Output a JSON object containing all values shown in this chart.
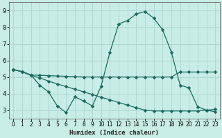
{
  "xlabel": "Humidex (Indice chaleur)",
  "background_color": "#c8ece6",
  "grid_color": "#b0d8d0",
  "line_color": "#1a6b5e",
  "xlim": [
    -0.5,
    23.5
  ],
  "ylim": [
    2.5,
    9.5
  ],
  "xticks": [
    0,
    1,
    2,
    3,
    4,
    5,
    6,
    7,
    8,
    9,
    10,
    11,
    12,
    13,
    14,
    15,
    16,
    17,
    18,
    19,
    20,
    21,
    22,
    23
  ],
  "yticks": [
    3,
    4,
    5,
    6,
    7,
    8,
    9
  ],
  "line1_x": [
    0,
    1,
    2,
    3,
    4,
    5,
    6,
    7,
    8,
    9,
    10,
    11,
    12,
    13,
    14,
    15,
    16,
    17,
    18,
    19,
    20,
    21,
    22,
    23
  ],
  "line1_y": [
    5.45,
    5.32,
    5.12,
    5.1,
    5.08,
    5.06,
    5.04,
    5.02,
    5.0,
    5.0,
    5.0,
    5.0,
    5.0,
    5.0,
    5.0,
    5.0,
    5.0,
    5.0,
    5.0,
    5.3,
    5.3,
    5.3,
    5.3,
    5.3
  ],
  "line2_x": [
    0,
    1,
    2,
    3,
    4,
    5,
    6,
    7,
    8,
    9,
    10,
    11,
    12,
    13,
    14,
    15,
    16,
    17,
    18,
    19,
    20,
    21,
    22,
    23
  ],
  "line2_y": [
    5.45,
    5.32,
    5.12,
    4.5,
    4.1,
    3.25,
    2.85,
    3.8,
    3.55,
    3.25,
    4.45,
    6.5,
    8.2,
    8.4,
    8.8,
    8.95,
    8.55,
    7.85,
    6.5,
    4.5,
    4.35,
    3.2,
    3.0,
    2.9
  ],
  "line3_x": [
    0,
    1,
    2,
    3,
    4,
    5,
    6,
    7,
    8,
    9,
    10,
    11,
    12,
    13,
    14,
    15,
    16,
    17,
    18,
    19,
    20,
    21,
    22,
    23
  ],
  "line3_y": [
    5.45,
    5.3,
    5.1,
    4.95,
    4.75,
    4.58,
    4.42,
    4.26,
    4.1,
    3.94,
    3.78,
    3.62,
    3.46,
    3.3,
    3.14,
    3.0,
    2.95,
    2.95,
    2.95,
    2.95,
    2.95,
    2.95,
    3.0,
    3.05
  ]
}
